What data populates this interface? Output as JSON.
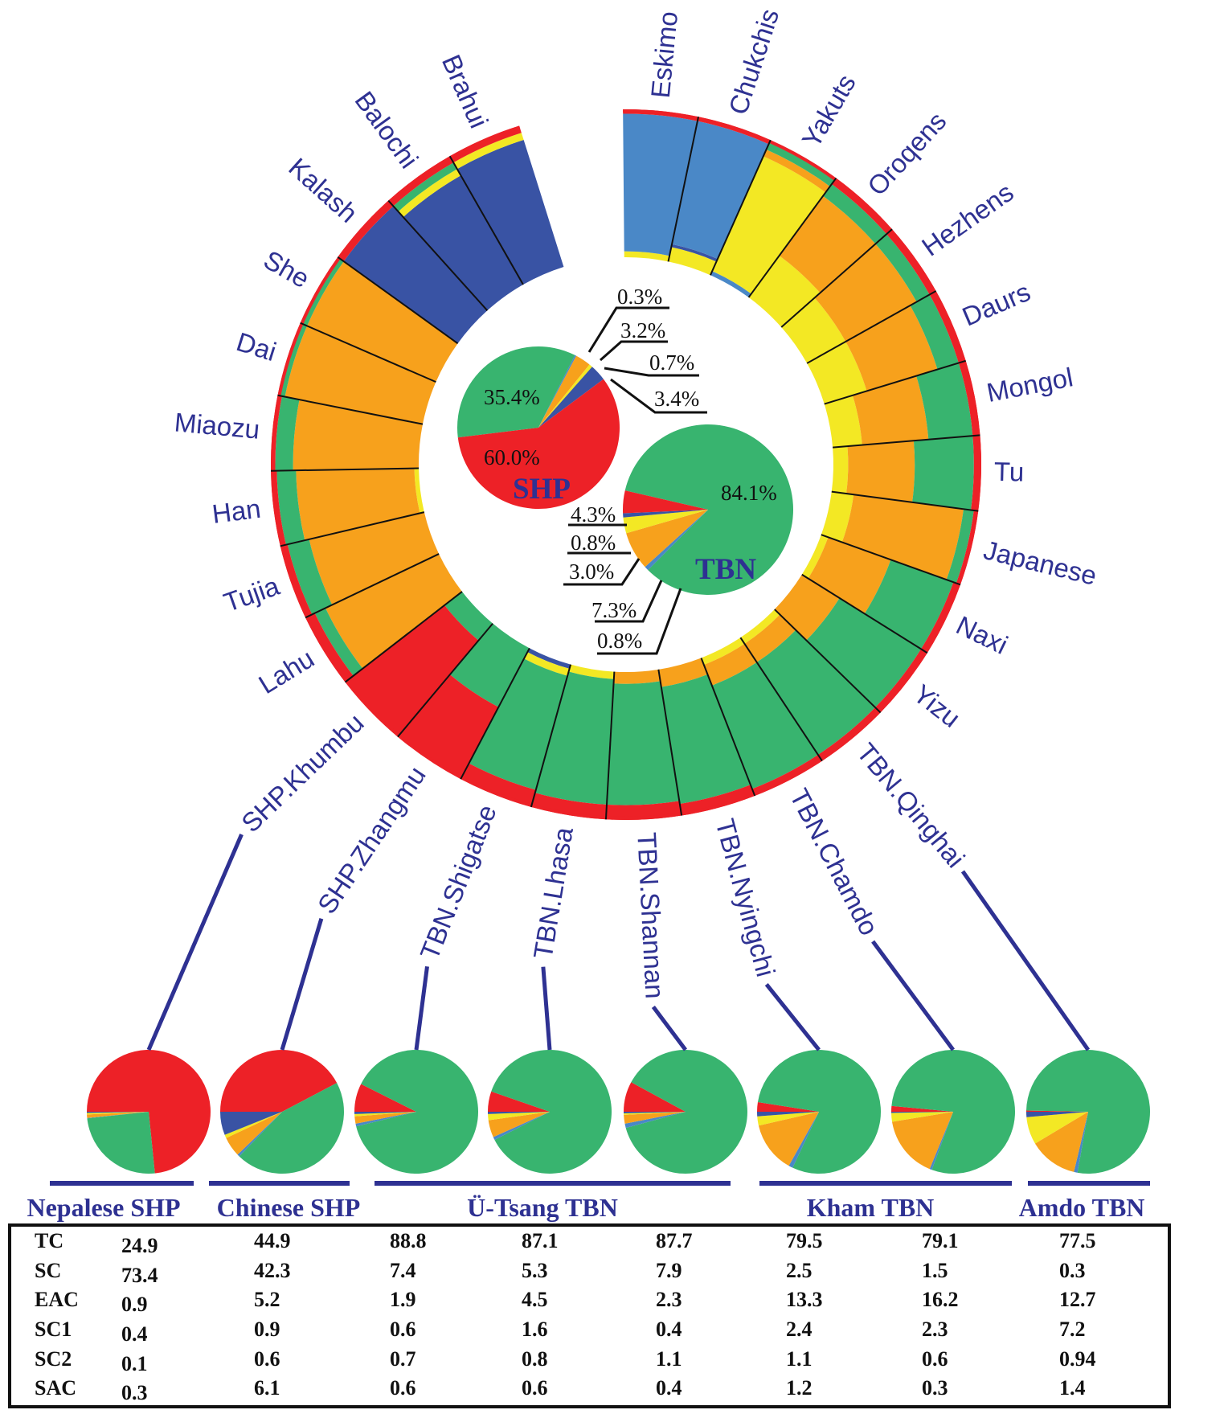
{
  "chart_data": {
    "type": "pie",
    "component_colors": {
      "TC": "#38b46f",
      "SC": "#ed2127",
      "EAC": "#f7a11c",
      "SC1": "#f3e824",
      "SC2": "#4a88c7",
      "SAC": "#3953a4"
    },
    "summary_pies": [
      {
        "label": "SHP",
        "slices": [
          {
            "component": "TC",
            "value": 35.4,
            "label": "35.4%"
          },
          {
            "component": "SC2",
            "value": 0.3,
            "label": "0.3%"
          },
          {
            "component": "EAC",
            "value": 3.2,
            "label": "3.2%"
          },
          {
            "component": "SC1",
            "value": 0.7,
            "label": "0.7%"
          },
          {
            "component": "SAC",
            "value": 3.4,
            "label": "3.4%"
          },
          {
            "component": "SC",
            "value": 60.0,
            "label": "60.0%"
          }
        ]
      },
      {
        "label": "TBN",
        "slices": [
          {
            "component": "TC",
            "value": 84.1,
            "label": "84.1%"
          },
          {
            "component": "SC2",
            "value": 0.8,
            "label": "0.8%"
          },
          {
            "component": "EAC",
            "value": 7.3,
            "label": "7.3%"
          },
          {
            "component": "SC1",
            "value": 3.0,
            "label": "3.0%"
          },
          {
            "component": "SAC",
            "value": 0.8,
            "label": "0.8%"
          },
          {
            "component": "SC",
            "value": 4.3,
            "label": "4.3%"
          }
        ]
      }
    ],
    "structure_ring": {
      "populations": [
        {
          "name": "Eskimo",
          "composition": {
            "SC1": 0.04,
            "SC2": 0.93,
            "SC": 0.03
          }
        },
        {
          "name": "Chukchis",
          "composition": {
            "SC1": 0.1,
            "SAC": 0.02,
            "SC2": 0.85,
            "SC": 0.03
          }
        },
        {
          "name": "Yakuts",
          "composition": {
            "SC2": 0.03,
            "SC1": 0.85,
            "EAC": 0.05,
            "TC": 0.05,
            "SC": 0.02
          }
        },
        {
          "name": "Oroqens",
          "composition": {
            "SC1": 0.35,
            "EAC": 0.5,
            "TC": 0.1,
            "SC": 0.05
          }
        },
        {
          "name": "Hezhens",
          "composition": {
            "SC1": 0.3,
            "EAC": 0.55,
            "TC": 0.1,
            "SC": 0.05
          }
        },
        {
          "name": "Daurs",
          "composition": {
            "SC1": 0.3,
            "EAC": 0.5,
            "TC": 0.15,
            "SC": 0.05
          }
        },
        {
          "name": "Mongol",
          "composition": {
            "SC1": 0.2,
            "EAC": 0.45,
            "TC": 0.3,
            "SC": 0.05
          }
        },
        {
          "name": "Tu",
          "composition": {
            "SC1": 0.1,
            "EAC": 0.45,
            "TC": 0.4,
            "SC": 0.05
          }
        },
        {
          "name": "Japanese",
          "composition": {
            "SC1": 0.15,
            "EAC": 0.75,
            "TC": 0.07,
            "SC": 0.03
          }
        },
        {
          "name": "Naxi",
          "composition": {
            "SC1": 0.05,
            "EAC": 0.45,
            "TC": 0.45,
            "SC": 0.05
          }
        },
        {
          "name": "Yizu",
          "composition": {
            "EAC": 0.3,
            "TC": 0.65,
            "SC": 0.05
          }
        },
        {
          "name": "TBN.Qinghai",
          "composition": {
            "SC1": 0.05,
            "EAC": 0.15,
            "TC": 0.75,
            "SC": 0.05
          }
        },
        {
          "name": "TBN.Chamdo",
          "composition": {
            "SC1": 0.05,
            "EAC": 0.15,
            "TC": 0.75,
            "SC": 0.05
          }
        },
        {
          "name": "TBN.Nyingchi",
          "composition": {
            "EAC": 0.12,
            "TC": 0.8,
            "SC": 0.08
          }
        },
        {
          "name": "TBN.Shannan",
          "composition": {
            "EAC": 0.08,
            "TC": 0.82,
            "SC": 0.1
          }
        },
        {
          "name": "TBN.Lhasa",
          "composition": {
            "SC1": 0.05,
            "TC": 0.85,
            "SC": 0.1
          }
        },
        {
          "name": "TBN.Shigatse",
          "composition": {
            "SAC": 0.03,
            "SC1": 0.05,
            "TC": 0.8,
            "SC": 0.12
          }
        },
        {
          "name": "SHP.Zhangmu",
          "composition": {
            "TC": 0.45,
            "SC": 0.55
          }
        },
        {
          "name": "SHP.Khumbu",
          "composition": {
            "TC": 0.15,
            "SC": 0.85
          }
        },
        {
          "name": "Lahu",
          "composition": {
            "EAC": 0.85,
            "TC": 0.08,
            "SC": 0.07
          }
        },
        {
          "name": "Tujia",
          "composition": {
            "EAC": 0.8,
            "TC": 0.15,
            "SC": 0.05
          }
        },
        {
          "name": "Han",
          "composition": {
            "SC1": 0.03,
            "EAC": 0.8,
            "TC": 0.13,
            "SC": 0.04
          }
        },
        {
          "name": "Miaozu",
          "composition": {
            "EAC": 0.85,
            "TC": 0.12,
            "SC": 0.03
          }
        },
        {
          "name": "Dai",
          "composition": {
            "EAC": 0.95,
            "TC": 0.03,
            "SC": 0.02
          }
        },
        {
          "name": "She",
          "composition": {
            "EAC": 0.95,
            "TC": 0.03,
            "SC": 0.02
          }
        },
        {
          "name": "Kalash",
          "composition": {
            "SAC": 0.95,
            "SC": 0.05
          }
        },
        {
          "name": "Balochi",
          "composition": {
            "SAC": 0.85,
            "SC1": 0.05,
            "TC": 0.05,
            "SC": 0.05
          }
        },
        {
          "name": "Brahui",
          "composition": {
            "SAC": 0.9,
            "SC1": 0.05,
            "SC": 0.05
          }
        }
      ]
    },
    "population_pies": [
      {
        "population": "SHP.Khumbu",
        "column": 0
      },
      {
        "population": "SHP.Zhangmu",
        "column": 1
      },
      {
        "population": "TBN.Shigatse",
        "column": 2
      },
      {
        "population": "TBN.Lhasa",
        "column": 3
      },
      {
        "population": "TBN.Shannan",
        "column": 4
      },
      {
        "population": "TBN.Nyingchi",
        "column": 5
      },
      {
        "population": "TBN.Chamdo",
        "column": 6
      },
      {
        "population": "TBN.Qinghai",
        "column": 7
      }
    ],
    "groups": [
      {
        "label": "Nepalese SHP",
        "columns": [
          0
        ]
      },
      {
        "label": "Chinese SHP",
        "columns": [
          1
        ]
      },
      {
        "label": "Ü-Tsang TBN",
        "columns": [
          2,
          3,
          4
        ]
      },
      {
        "label": "Kham TBN",
        "columns": [
          5,
          6
        ]
      },
      {
        "label": "Amdo TBN",
        "columns": [
          7
        ]
      }
    ],
    "table": {
      "rows": [
        {
          "label": "TC",
          "values": [
            "24.9",
            "44.9",
            "88.8",
            "87.1",
            "87.7",
            "79.5",
            "79.1",
            "77.5"
          ]
        },
        {
          "label": "SC",
          "values": [
            "73.4",
            "42.3",
            "7.4",
            "5.3",
            "7.9",
            "2.5",
            "1.5",
            "0.3"
          ]
        },
        {
          "label": "EAC",
          "values": [
            "0.9",
            "5.2",
            "1.9",
            "4.5",
            "2.3",
            "13.3",
            "16.2",
            "12.7"
          ]
        },
        {
          "label": "SC1",
          "values": [
            "0.4",
            "0.9",
            "0.6",
            "1.6",
            "0.4",
            "2.4",
            "2.3",
            "7.2"
          ]
        },
        {
          "label": "SC2",
          "values": [
            "0.1",
            "0.6",
            "0.7",
            "0.8",
            "1.1",
            "1.1",
            "0.6",
            "0.94"
          ]
        },
        {
          "label": "SAC",
          "values": [
            "0.3",
            "6.1",
            "0.6",
            "0.6",
            "0.4",
            "1.2",
            "0.3",
            "1.4"
          ]
        }
      ]
    }
  }
}
